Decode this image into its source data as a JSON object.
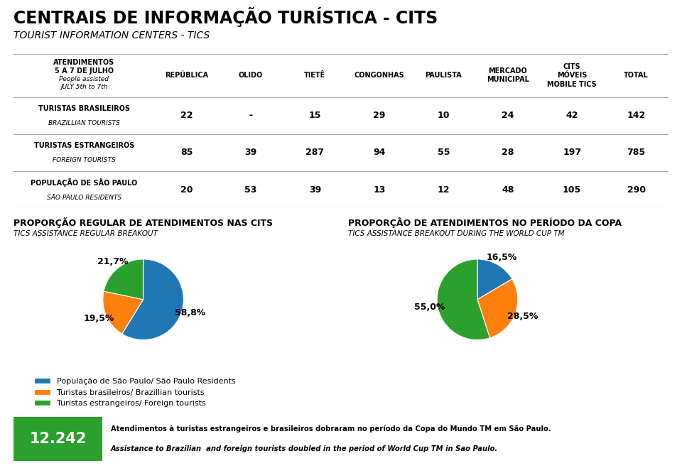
{
  "title": "CENTRAIS DE INFORMAÇÃO TURÍSTICA - CITS",
  "subtitle": "TOURIST INFORMATION CENTERS - TICS",
  "annotations": [
    "12.242",
    "Atendimentos à turistas estrangeiros e brasileiros dobraram no período da Copa do Mundo TM em São Paulo.",
    "Assistance to Brazilian  and foreign tourists doubled in the period of World Cup TM in Sao Paulo."
  ],
  "chart_data": [
    {
      "type": "table",
      "title": "ATENDIMENTOS\n5 A 7 DE JULHO",
      "subtitle": "People assisted\nJULY 5th to 7th",
      "categories": [
        "REPÚBLICA",
        "OLIDO",
        "TIETÊ",
        "CONGONHAS",
        "PAULISTA",
        "MERCADO\nMUNICIPAL",
        "CITS\nMÓVEIS\nMOBILE TICS",
        "TOTAL"
      ],
      "series": [
        {
          "name": "TURISTAS BRASILEIROS",
          "subtitle": "BRAZILLIAN TOURISTS",
          "values": [
            22,
            null,
            15,
            29,
            10,
            24,
            42,
            142
          ],
          "value_labels": [
            "22",
            "-",
            "15",
            "29",
            "10",
            "24",
            "42",
            "142"
          ]
        },
        {
          "name": "TURISTAS ESTRANGEIROS",
          "subtitle": "FOREIGN TOURISTS",
          "values": [
            85,
            39,
            287,
            94,
            55,
            28,
            197,
            785
          ],
          "value_labels": [
            "85",
            "39",
            "287",
            "94",
            "55",
            "28",
            "197",
            "785"
          ]
        },
        {
          "name": "POPULAÇÃO DE SÃO PAULO",
          "subtitle": "SÃO PAULO RESIDENTS",
          "values": [
            20,
            53,
            39,
            13,
            12,
            48,
            105,
            290
          ],
          "value_labels": [
            "20",
            "53",
            "39",
            "13",
            "12",
            "48",
            "105",
            "290"
          ]
        }
      ]
    },
    {
      "type": "pie",
      "title": "PROPORÇÃO REGULAR DE ATENDIMENTOS NAS CITS",
      "subtitle": "TICS ASSISTANCE REGULAR BREAKOUT",
      "categories": [
        "População de São Paulo/ São Paulo Residents",
        "Turistas brasileiros/ Brazillian tourists",
        "Turistas estrangeiros/ Foreign tourists"
      ],
      "values": [
        58.8,
        19.5,
        21.7
      ],
      "value_labels": [
        "58,8%",
        "19,5%",
        "21,7%"
      ],
      "data_labels": true,
      "legend": "lower left"
    },
    {
      "type": "pie",
      "title": "PROPORÇÃO DE ATENDIMENTOS NO PERÍODO DA COPA",
      "subtitle": "TICS ASSISTANCE BREAKOUT DURING THE WORLD CUP TM",
      "values": [
        16.5,
        28.5,
        55.0
      ],
      "value_labels": [
        "16,5%",
        "28,5%",
        "55,0%"
      ],
      "data_labels": true
    }
  ]
}
